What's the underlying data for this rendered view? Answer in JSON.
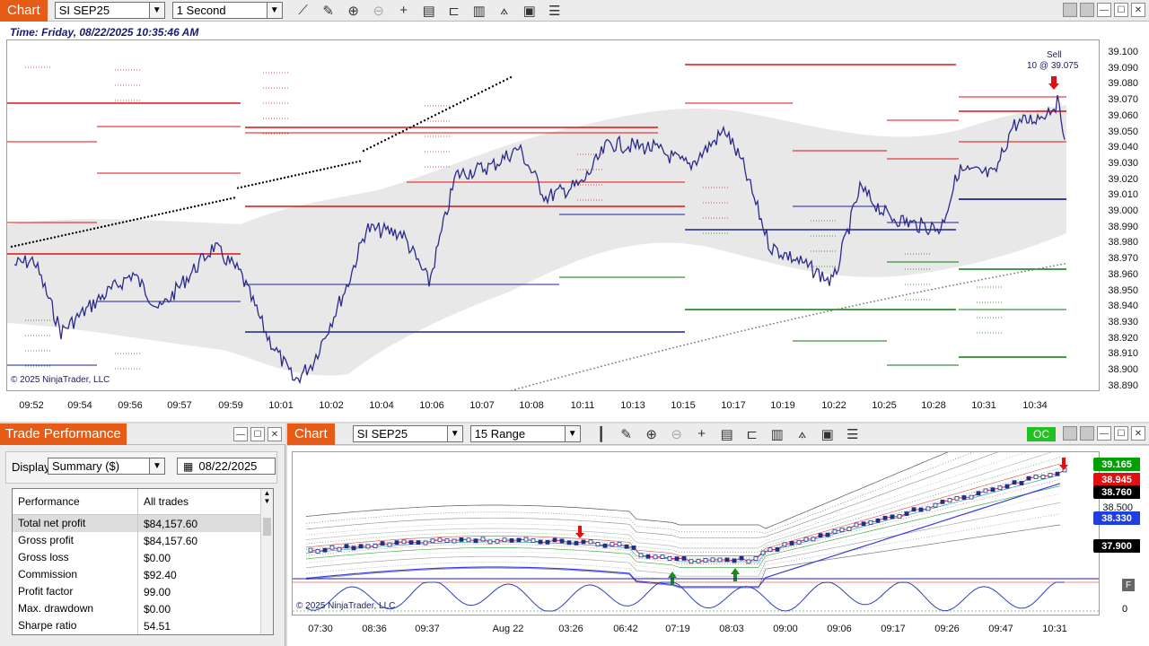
{
  "top_chart": {
    "tab_label": "Chart",
    "instrument": "SI SEP25",
    "interval": "1 Second",
    "time_info": "Time: Friday, 08/22/2025 10:35:46 AM",
    "copyright": "© 2025 NinjaTrader, LLC",
    "sell_label_1": "Sell",
    "sell_label_2": "10 @ 39.075",
    "price_ticks": [
      "39.100",
      "39.090",
      "39.080",
      "39.070",
      "39.060",
      "39.050",
      "39.040",
      "39.030",
      "39.020",
      "39.010",
      "39.000",
      "38.990",
      "38.980",
      "38.970",
      "38.960",
      "38.950",
      "38.940",
      "38.930",
      "38.920",
      "38.910",
      "38.900",
      "38.890"
    ],
    "time_ticks": [
      "09:52",
      "09:54",
      "09:56",
      "09:57",
      "09:59",
      "10:01",
      "10:02",
      "10:04",
      "10:06",
      "10:07",
      "10:08",
      "10:11",
      "10:13",
      "10:15",
      "10:17",
      "10:19",
      "10:22",
      "10:25",
      "10:28",
      "10:31",
      "10:34"
    ]
  },
  "trade_perf": {
    "title": "Trade Performance",
    "display_label": "Display",
    "display_value": "Summary ($)",
    "date_value": "08/22/2025",
    "col_perf": "Performance",
    "col_all": "All trades",
    "rows": [
      {
        "k": "Total net profit",
        "v": "$84,157.60"
      },
      {
        "k": "Gross profit",
        "v": "$84,157.60"
      },
      {
        "k": "Gross loss",
        "v": "$0.00"
      },
      {
        "k": "Commission",
        "v": "$92.40"
      },
      {
        "k": "Profit factor",
        "v": "99.00"
      },
      {
        "k": "Max. drawdown",
        "v": "$0.00"
      },
      {
        "k": "Sharpe ratio",
        "v": "54.51"
      }
    ]
  },
  "bottom_chart": {
    "tab_label": "Chart",
    "instrument": "SI SEP25",
    "interval": "15 Range",
    "oc_label": "OC",
    "copyright": "© 2025 NinjaTrader, LLC",
    "badges": [
      {
        "text": "39.165",
        "bg": "#00a000",
        "fg": "#ffffff"
      },
      {
        "text": "38.945",
        "bg": "#e01010",
        "fg": "#ffffff"
      },
      {
        "text": "38.760",
        "bg": "#000000",
        "fg": "#ffffff"
      },
      {
        "text": "38.330",
        "bg": "#1f3fe0",
        "fg": "#ffffff"
      },
      {
        "text": "37.900",
        "bg": "#000000",
        "fg": "#ffffff"
      }
    ],
    "plain_ticks": [
      "38.500"
    ],
    "osc_tick": "0",
    "f_label": "F",
    "time_ticks": [
      "07:30",
      "08:36",
      "09:37",
      "Aug 22",
      "03:26",
      "06:42",
      "07:19",
      "08:03",
      "09:00",
      "09:06",
      "09:17",
      "09:26",
      "09:47",
      "10:31"
    ]
  },
  "colors": {
    "accent_orange": "#e65c17",
    "price_line": "#2b2b8c",
    "resistance": "#e01010",
    "support": "#0a7a0a"
  }
}
